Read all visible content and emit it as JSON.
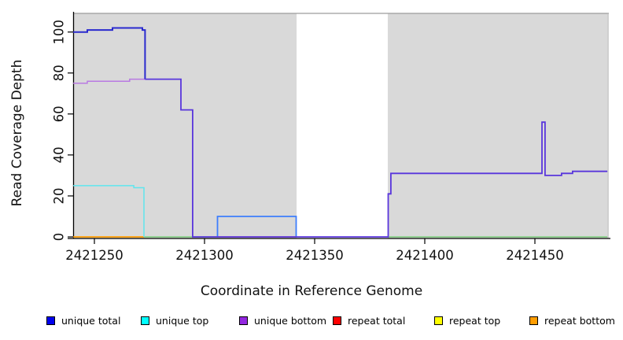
{
  "chart_data": {
    "type": "line",
    "title": "",
    "xlabel": "Coordinate in Reference Genome",
    "ylabel": "Read Coverage Depth",
    "x_ticks": [
      2421250,
      2421300,
      2421350,
      2421400,
      2421450
    ],
    "y_ticks": [
      0,
      20,
      40,
      60,
      80,
      100
    ],
    "xlim": [
      2421240.4,
      2421483.6
    ],
    "ylim": [
      0,
      109
    ],
    "grid": false,
    "legend_position": "bottom",
    "shaded_regions": [
      {
        "x0": 2421240.4,
        "x1": 2421341.8,
        "color": "#d9d9d9"
      },
      {
        "x0": 2421383.2,
        "x1": 2421482.9,
        "color": "#d9d9d9"
      }
    ],
    "series": [
      {
        "name": "repeat-bottom-baseline",
        "color": "#ff9d00",
        "width": 1.8,
        "points": [
          [
            2421240.4,
            0
          ],
          [
            2421272.5,
            0
          ]
        ]
      },
      {
        "name": "baseline-green-left",
        "color": "#7ccd7c",
        "width": 1.5,
        "points": [
          [
            2421272.5,
            0
          ],
          [
            2421305.9,
            0
          ]
        ]
      },
      {
        "name": "repeat-total-baseline",
        "color": "#ee7070",
        "width": 1.5,
        "points": [
          [
            2421305.9,
            0
          ],
          [
            2421341.8,
            0
          ]
        ]
      },
      {
        "name": "baseline-green-right",
        "color": "#7ccd7c",
        "width": 1.5,
        "points": [
          [
            2421383.2,
            0
          ],
          [
            2421482.9,
            0
          ]
        ]
      },
      {
        "name": "unique-top",
        "color": "#5fe6ee",
        "width": 1.5,
        "points": [
          [
            2421240.4,
            25
          ],
          [
            2421267.9,
            25
          ],
          [
            2421267.9,
            24
          ],
          [
            2421272.5,
            24
          ],
          [
            2421272.5,
            0
          ]
        ]
      },
      {
        "name": "unique-total-box",
        "color": "#3e7efc",
        "width": 1.8,
        "points": [
          [
            2421305.9,
            0
          ],
          [
            2421305.9,
            10
          ],
          [
            2421341.6,
            10
          ],
          [
            2421341.6,
            0
          ]
        ]
      },
      {
        "name": "unique-bottom",
        "color": "#b97ae2",
        "width": 1.5,
        "points": [
          [
            2421240.4,
            75
          ],
          [
            2421246.8,
            75
          ],
          [
            2421246.8,
            76
          ],
          [
            2421266.0,
            76
          ],
          [
            2421266.0,
            77
          ],
          [
            2421273.0,
            77
          ]
        ]
      },
      {
        "name": "unique-total-left",
        "color": "#2a2ace",
        "width": 2.0,
        "points": [
          [
            2421240.4,
            100
          ],
          [
            2421246.8,
            100
          ],
          [
            2421246.8,
            101
          ],
          [
            2421258.2,
            101
          ],
          [
            2421258.2,
            102
          ],
          [
            2421271.8,
            102
          ],
          [
            2421271.8,
            101
          ],
          [
            2421273.0,
            101
          ],
          [
            2421273.0,
            77
          ]
        ]
      },
      {
        "name": "unique-total-plus-bottom-merged",
        "color": "#5936dc",
        "width": 1.8,
        "points": [
          [
            2421273.0,
            77
          ],
          [
            2421289.3,
            77
          ],
          [
            2421289.3,
            62
          ],
          [
            2421294.6,
            62
          ],
          [
            2421294.6,
            0
          ],
          [
            2421383.4,
            0
          ],
          [
            2421383.4,
            21
          ],
          [
            2421384.6,
            21
          ],
          [
            2421384.6,
            31
          ],
          [
            2421453.2,
            31
          ],
          [
            2421453.2,
            56
          ],
          [
            2421454.6,
            56
          ],
          [
            2421454.6,
            30
          ],
          [
            2421462.1,
            30
          ],
          [
            2421462.1,
            31
          ],
          [
            2421467.1,
            31
          ],
          [
            2421467.1,
            32
          ],
          [
            2421482.9,
            32
          ]
        ]
      }
    ]
  },
  "legend": {
    "items": [
      {
        "label": "unique total",
        "color": "#0000ee"
      },
      {
        "label": "unique top",
        "color": "#00ffff"
      },
      {
        "label": "unique bottom",
        "color": "#9327e0"
      },
      {
        "label": "repeat total",
        "color": "#ff0000"
      },
      {
        "label": "repeat top",
        "color": "#ffff00"
      },
      {
        "label": "repeat bottom",
        "color": "#ff9d00"
      }
    ]
  }
}
